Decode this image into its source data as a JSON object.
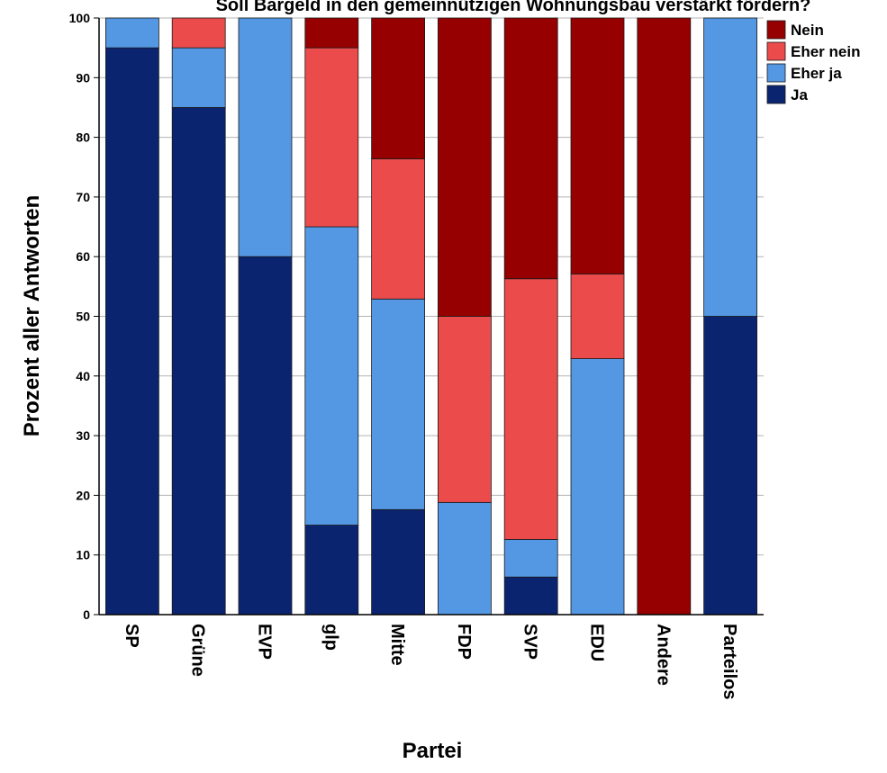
{
  "chart_data": {
    "type": "bar",
    "stacked": true,
    "title": "Soll Bargeld in den gemeinnützigen Wohnungsbau verstärkt fördern?",
    "xlabel": "Partei",
    "ylabel": "Prozent aller Antworten",
    "ylim": [
      0,
      100
    ],
    "yticks": [
      0,
      10,
      20,
      30,
      40,
      50,
      60,
      70,
      80,
      90,
      100
    ],
    "grid": true,
    "legend_position": "top-right",
    "categories": [
      "SP",
      "Grüne",
      "EVP",
      "glp",
      "Mitte",
      "FDP",
      "SVP",
      "EDU",
      "Andere",
      "Parteilos"
    ],
    "series": [
      {
        "name": "Ja",
        "color": "#0b2470",
        "values": [
          95,
          85,
          60,
          15,
          17.6,
          0,
          6.3,
          0,
          0,
          50
        ]
      },
      {
        "name": "Eher ja",
        "color": "#5497e3",
        "values": [
          5,
          10,
          40,
          50,
          35.3,
          18.8,
          6.3,
          42.9,
          0,
          50
        ]
      },
      {
        "name": "Eher nein",
        "color": "#eb4b4b",
        "values": [
          0,
          5,
          0,
          30,
          23.5,
          31.2,
          43.7,
          14.2,
          0,
          0
        ]
      },
      {
        "name": "Nein",
        "color": "#970000",
        "values": [
          0,
          0,
          0,
          5,
          23.6,
          50,
          43.7,
          42.9,
          100,
          0
        ]
      }
    ],
    "legend_order": [
      "Nein",
      "Eher nein",
      "Eher ja",
      "Ja"
    ]
  }
}
